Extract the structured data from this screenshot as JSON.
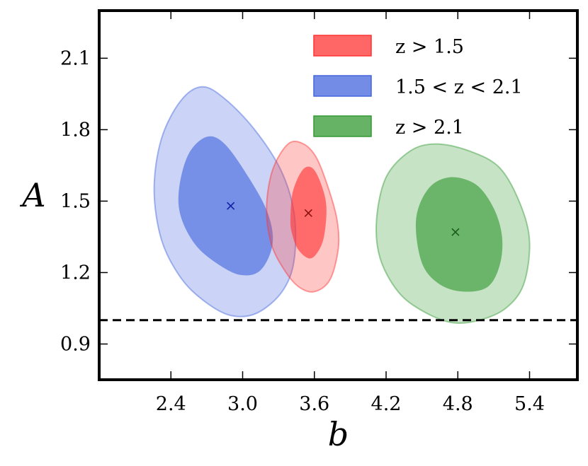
{
  "chart_data": {
    "type": "contour",
    "xlabel": "b",
    "ylabel": "A",
    "xlim": [
      1.8,
      5.8
    ],
    "ylim": [
      0.75,
      2.3
    ],
    "xticks": [
      "2.4",
      "3.0",
      "3.6",
      "4.2",
      "4.8",
      "5.4"
    ],
    "yticks": [
      "0.9",
      "1.2",
      "1.5",
      "1.8",
      "2.1"
    ],
    "grid": false,
    "legend_position": "top-right",
    "reference_line": {
      "y": 1.0,
      "style": "dashed"
    },
    "series": [
      {
        "name": "z > 1.5",
        "color": "#ff3333",
        "best_fit": {
          "b": 3.55,
          "A": 1.45
        },
        "contour_68": [
          [
            3.4,
            1.43
          ],
          [
            3.42,
            1.54
          ],
          [
            3.5,
            1.63
          ],
          [
            3.58,
            1.64
          ],
          [
            3.65,
            1.58
          ],
          [
            3.7,
            1.48
          ],
          [
            3.68,
            1.35
          ],
          [
            3.62,
            1.28
          ],
          [
            3.55,
            1.26
          ],
          [
            3.46,
            1.3
          ],
          [
            3.41,
            1.37
          ]
        ],
        "contour_95": [
          [
            3.2,
            1.47
          ],
          [
            3.25,
            1.63
          ],
          [
            3.38,
            1.74
          ],
          [
            3.51,
            1.74
          ],
          [
            3.62,
            1.68
          ],
          [
            3.72,
            1.55
          ],
          [
            3.79,
            1.42
          ],
          [
            3.8,
            1.3
          ],
          [
            3.73,
            1.17
          ],
          [
            3.6,
            1.12
          ],
          [
            3.47,
            1.14
          ],
          [
            3.35,
            1.21
          ],
          [
            3.24,
            1.32
          ]
        ]
      },
      {
        "name": "1.5 < z < 2.1",
        "color": "#4466dd",
        "best_fit": {
          "b": 2.9,
          "A": 1.48
        },
        "contour_68": [
          [
            2.47,
            1.56
          ],
          [
            2.55,
            1.7
          ],
          [
            2.7,
            1.77
          ],
          [
            2.85,
            1.74
          ],
          [
            3.05,
            1.6
          ],
          [
            3.21,
            1.45
          ],
          [
            3.25,
            1.32
          ],
          [
            3.15,
            1.21
          ],
          [
            2.98,
            1.19
          ],
          [
            2.78,
            1.24
          ],
          [
            2.6,
            1.32
          ],
          [
            2.48,
            1.44
          ]
        ],
        "contour_95": [
          [
            2.26,
            1.55
          ],
          [
            2.32,
            1.76
          ],
          [
            2.48,
            1.92
          ],
          [
            2.66,
            1.98
          ],
          [
            2.85,
            1.93
          ],
          [
            3.1,
            1.8
          ],
          [
            3.32,
            1.63
          ],
          [
            3.43,
            1.45
          ],
          [
            3.43,
            1.25
          ],
          [
            3.33,
            1.12
          ],
          [
            3.12,
            1.03
          ],
          [
            2.9,
            1.02
          ],
          [
            2.68,
            1.08
          ],
          [
            2.48,
            1.18
          ],
          [
            2.32,
            1.34
          ]
        ]
      },
      {
        "name": "z > 2.1",
        "color": "#339933",
        "best_fit": {
          "b": 4.78,
          "A": 1.37
        },
        "contour_68": [
          [
            4.45,
            1.42
          ],
          [
            4.55,
            1.55
          ],
          [
            4.73,
            1.6
          ],
          [
            4.95,
            1.57
          ],
          [
            5.1,
            1.47
          ],
          [
            5.17,
            1.35
          ],
          [
            5.15,
            1.23
          ],
          [
            5.05,
            1.14
          ],
          [
            4.85,
            1.12
          ],
          [
            4.65,
            1.15
          ],
          [
            4.5,
            1.24
          ]
        ],
        "contour_95": [
          [
            4.12,
            1.42
          ],
          [
            4.2,
            1.6
          ],
          [
            4.4,
            1.71
          ],
          [
            4.62,
            1.74
          ],
          [
            4.9,
            1.71
          ],
          [
            5.15,
            1.64
          ],
          [
            5.32,
            1.49
          ],
          [
            5.4,
            1.33
          ],
          [
            5.35,
            1.15
          ],
          [
            5.2,
            1.05
          ],
          [
            4.98,
            1.0
          ],
          [
            4.75,
            0.99
          ],
          [
            4.5,
            1.04
          ],
          [
            4.3,
            1.12
          ],
          [
            4.15,
            1.26
          ]
        ]
      }
    ]
  }
}
